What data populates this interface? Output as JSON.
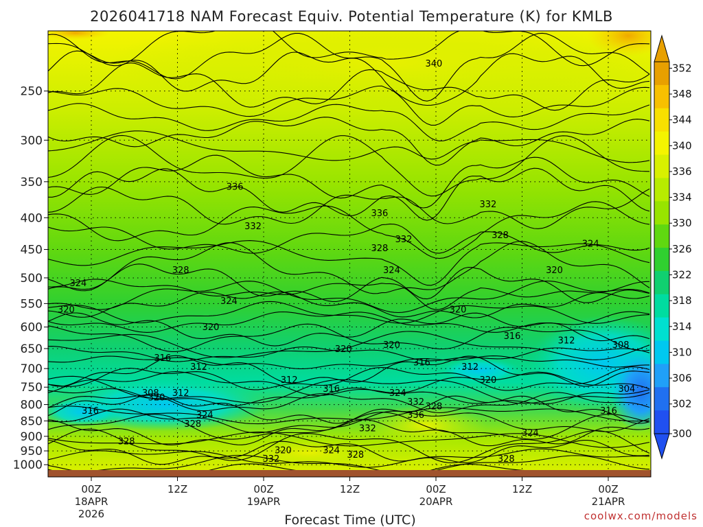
{
  "chart_data": {
    "type": "contour",
    "title": "2026041718 NAM Forecast Equiv. Potential Temperature (K) for KMLB",
    "xlabel": "Forecast Time (UTC)",
    "ylabel": "",
    "y_scale": "log-pressure",
    "y_reversed": true,
    "ylim": [
      1020,
      200
    ],
    "y_ticks": [
      250,
      300,
      350,
      400,
      450,
      500,
      550,
      600,
      650,
      700,
      750,
      800,
      850,
      900,
      950,
      1000
    ],
    "x_ticks": [
      {
        "line1": "00Z",
        "line2": "18APR",
        "line3": "2026"
      },
      {
        "line1": "12Z",
        "line2": "",
        "line3": ""
      },
      {
        "line1": "00Z",
        "line2": "19APR",
        "line3": ""
      },
      {
        "line1": "12Z",
        "line2": "",
        "line3": ""
      },
      {
        "line1": "00Z",
        "line2": "20APR",
        "line3": ""
      },
      {
        "line1": "12Z",
        "line2": "",
        "line3": ""
      },
      {
        "line1": "00Z",
        "line2": "21APR",
        "line3": ""
      }
    ],
    "grid": true,
    "colorbar": {
      "placement": "right",
      "ticks": [
        352,
        348,
        344,
        340,
        336,
        334,
        330,
        326,
        322,
        318,
        314,
        310,
        306,
        302,
        300
      ],
      "colors": [
        "#e8a000",
        "#f8c000",
        "#f8e000",
        "#f4f400",
        "#d8f000",
        "#b8ec00",
        "#98e400",
        "#60d810",
        "#30d030",
        "#10d070",
        "#00dca0",
        "#00e0d0",
        "#00c8f0",
        "#20a0f8",
        "#2070f0",
        "#2050f0"
      ]
    },
    "contour_labels": [
      {
        "x": 0.64,
        "y": 0.08,
        "value": "340"
      },
      {
        "x": 0.31,
        "y": 0.36,
        "value": "336"
      },
      {
        "x": 0.55,
        "y": 0.42,
        "value": "336"
      },
      {
        "x": 0.73,
        "y": 0.4,
        "value": "332"
      },
      {
        "x": 0.34,
        "y": 0.45,
        "value": "332"
      },
      {
        "x": 0.59,
        "y": 0.48,
        "value": "332"
      },
      {
        "x": 0.55,
        "y": 0.5,
        "value": "328"
      },
      {
        "x": 0.75,
        "y": 0.47,
        "value": "328"
      },
      {
        "x": 0.22,
        "y": 0.55,
        "value": "328"
      },
      {
        "x": 0.9,
        "y": 0.49,
        "value": "324"
      },
      {
        "x": 0.57,
        "y": 0.55,
        "value": "324"
      },
      {
        "x": 0.05,
        "y": 0.58,
        "value": "324"
      },
      {
        "x": 0.3,
        "y": 0.62,
        "value": "324"
      },
      {
        "x": 0.84,
        "y": 0.55,
        "value": "320"
      },
      {
        "x": 0.03,
        "y": 0.64,
        "value": "320"
      },
      {
        "x": 0.68,
        "y": 0.64,
        "value": "320"
      },
      {
        "x": 0.27,
        "y": 0.68,
        "value": "320"
      },
      {
        "x": 0.49,
        "y": 0.73,
        "value": "320"
      },
      {
        "x": 0.57,
        "y": 0.72,
        "value": "320"
      },
      {
        "x": 0.77,
        "y": 0.7,
        "value": "316"
      },
      {
        "x": 0.86,
        "y": 0.71,
        "value": "312"
      },
      {
        "x": 0.95,
        "y": 0.72,
        "value": "308"
      },
      {
        "x": 0.19,
        "y": 0.75,
        "value": "316"
      },
      {
        "x": 0.25,
        "y": 0.77,
        "value": "312"
      },
      {
        "x": 0.62,
        "y": 0.76,
        "value": "316"
      },
      {
        "x": 0.7,
        "y": 0.77,
        "value": "312"
      },
      {
        "x": 0.4,
        "y": 0.8,
        "value": "312"
      },
      {
        "x": 0.47,
        "y": 0.82,
        "value": "316"
      },
      {
        "x": 0.73,
        "y": 0.8,
        "value": "320"
      },
      {
        "x": 0.96,
        "y": 0.82,
        "value": "304"
      },
      {
        "x": 0.17,
        "y": 0.83,
        "value": "308"
      },
      {
        "x": 0.22,
        "y": 0.83,
        "value": "312"
      },
      {
        "x": 0.18,
        "y": 0.84,
        "value": "320"
      },
      {
        "x": 0.58,
        "y": 0.83,
        "value": "324"
      },
      {
        "x": 0.61,
        "y": 0.85,
        "value": "332"
      },
      {
        "x": 0.64,
        "y": 0.86,
        "value": "328"
      },
      {
        "x": 0.07,
        "y": 0.87,
        "value": "316"
      },
      {
        "x": 0.26,
        "y": 0.88,
        "value": "324"
      },
      {
        "x": 0.93,
        "y": 0.87,
        "value": "316"
      },
      {
        "x": 0.61,
        "y": 0.88,
        "value": "336"
      },
      {
        "x": 0.24,
        "y": 0.9,
        "value": "328"
      },
      {
        "x": 0.53,
        "y": 0.91,
        "value": "332"
      },
      {
        "x": 0.8,
        "y": 0.92,
        "value": "324"
      },
      {
        "x": 0.13,
        "y": 0.94,
        "value": "328"
      },
      {
        "x": 0.39,
        "y": 0.96,
        "value": "320"
      },
      {
        "x": 0.47,
        "y": 0.96,
        "value": "324"
      },
      {
        "x": 0.51,
        "y": 0.97,
        "value": "328"
      },
      {
        "x": 0.37,
        "y": 0.98,
        "value": "332"
      },
      {
        "x": 0.76,
        "y": 0.98,
        "value": "328"
      }
    ]
  },
  "credit": "coolwx.com/models"
}
